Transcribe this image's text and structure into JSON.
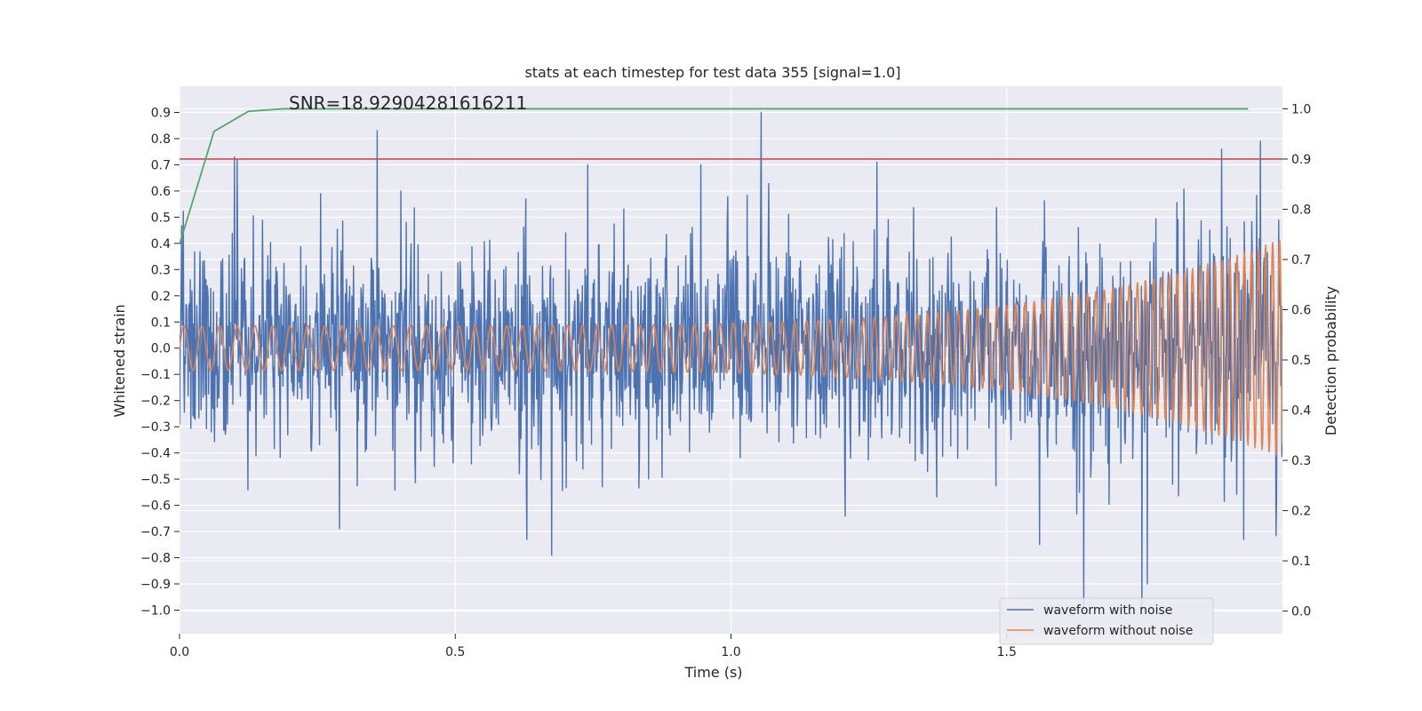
{
  "chart_data": {
    "type": "line",
    "title": "stats at each timestep for test data 355 [signal=1.0]",
    "xlabel": "Time (s)",
    "ylabel": "Whitened strain",
    "ylabel_right": "Detection probability",
    "xlim": [
      0.0,
      2.0
    ],
    "ylim": [
      -1.09,
      1.0
    ],
    "ylim_right": [
      -0.045,
      1.045
    ],
    "x_ticks": [
      0.0,
      0.5,
      1.0,
      1.5
    ],
    "x_tick_labels": [
      "0.0",
      "0.5",
      "1.0",
      "1.5"
    ],
    "y_ticks": [
      0.9,
      0.8,
      0.7,
      0.6,
      0.5,
      0.4,
      0.3,
      0.2,
      0.1,
      0.0,
      -0.1,
      -0.2,
      -0.3,
      -0.4,
      -0.5,
      -0.6,
      -0.7,
      -0.8,
      -0.9,
      -1.0
    ],
    "y_tick_labels": [
      "0.9",
      "0.8",
      "0.7",
      "0.6",
      "0.5",
      "0.4",
      "0.3",
      "0.2",
      "0.1",
      "0.0",
      "−0.1",
      "−0.2",
      "−0.3",
      "−0.4",
      "−0.5",
      "−0.6",
      "−0.7",
      "−0.8",
      "−0.9",
      "−1.0"
    ],
    "y_ticks_right": [
      1.0,
      0.9,
      0.8,
      0.7,
      0.6,
      0.5,
      0.4,
      0.3,
      0.2,
      0.1,
      0.0
    ],
    "y_tick_labels_right": [
      "1.0",
      "0.9",
      "0.8",
      "0.7",
      "0.6",
      "0.5",
      "0.4",
      "0.3",
      "0.2",
      "0.1",
      "0.0"
    ],
    "grid": true,
    "legend_position": "lower-right",
    "annotation": "SNR=18.92904281616211",
    "series": [
      {
        "name": "waveform with noise",
        "color": "#4c72b0",
        "axis": "left",
        "x_range": [
          0.0,
          2.0
        ],
        "samples": 2048,
        "std": 0.21,
        "extremes": [
          [
            0.358,
            0.83
          ],
          [
            1.055,
            0.9
          ],
          [
            0.675,
            -0.79
          ],
          [
            1.64,
            -1.0
          ],
          [
            1.745,
            -1.0
          ],
          [
            1.755,
            -0.9
          ],
          [
            1.56,
            -0.75
          ],
          [
            0.29,
            -0.69
          ],
          [
            1.96,
            0.79
          ],
          [
            1.93,
            -0.73
          ],
          [
            0.74,
            0.7
          ],
          [
            0.945,
            0.7
          ],
          [
            1.265,
            0.71
          ],
          [
            1.89,
            0.76
          ],
          [
            0.63,
            -0.73
          ]
        ]
      },
      {
        "name": "waveform without noise",
        "color": "#dd8452",
        "axis": "left",
        "x_range": [
          0.0,
          2.0
        ],
        "samples": 2048,
        "amplitude_start": 0.085,
        "amplitude_end": 0.42,
        "cycles_per_second_start": 31,
        "cycles_per_second_end": 80
      },
      {
        "name": "",
        "color": "#55a868",
        "axis": "right",
        "x": [
          0.0,
          0.0625,
          0.125,
          0.1875,
          0.25,
          0.5,
          1.0,
          1.5,
          1.9375
        ],
        "y": [
          0.73,
          0.955,
          0.995,
          1.0,
          1.0,
          1.0,
          1.0,
          1.0,
          1.0
        ]
      }
    ],
    "threshold": {
      "color": "#c44e52",
      "axis": "right",
      "y": 0.9
    }
  }
}
